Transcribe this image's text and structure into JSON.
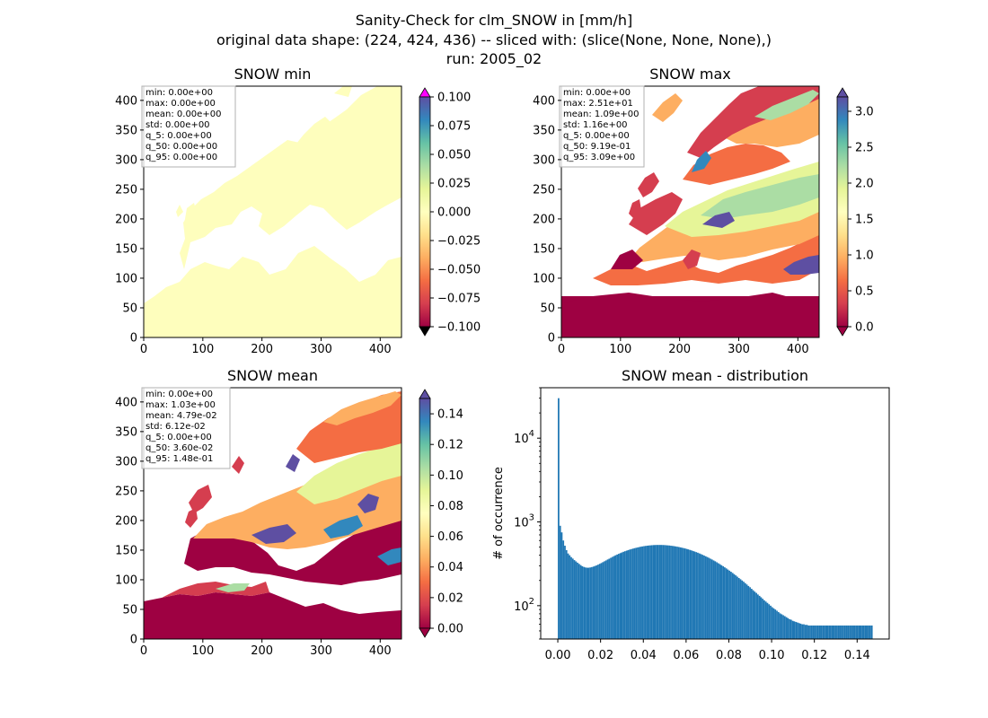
{
  "figure": {
    "suptitle_lines": [
      "Sanity-Check for clm_SNOW in [mm/h]",
      "original data shape: (224, 424, 436) -- sliced with: (slice(None, None, None),)",
      "run: 2005_02"
    ]
  },
  "colors": {
    "land_uniform": "#fefebd",
    "over_color": "#ff00ff",
    "under_color": "#000000",
    "hist_bar": "#1f77b4",
    "colormap": "Spectral",
    "spectral_stops": [
      "#9e0142",
      "#d53e4f",
      "#f46d43",
      "#fdae61",
      "#fee08b",
      "#ffffbf",
      "#e6f598",
      "#abdda4",
      "#66c2a5",
      "#3288bd",
      "#5e4fa2"
    ]
  },
  "panels": {
    "min": {
      "title": "SNOW min",
      "stats": [
        "min: 0.00e+00",
        "max: 0.00e+00",
        "mean: 0.00e+00",
        "std: 0.00e+00",
        "q_5: 0.00e+00",
        "q_50: 0.00e+00",
        "q_95: 0.00e+00"
      ]
    },
    "max": {
      "title": "SNOW max",
      "stats": [
        "min: 0.00e+00",
        "max: 2.51e+01",
        "mean: 1.09e+00",
        "std: 1.16e+00",
        "q_5: 0.00e+00",
        "q_50: 9.19e-01",
        "q_95: 3.09e+00"
      ]
    },
    "mean": {
      "title": "SNOW mean",
      "stats": [
        "min: 0.00e+00",
        "max: 1.03e+00",
        "mean: 4.79e-02",
        "std: 6.12e-02",
        "q_5: 0.00e+00",
        "q_50: 3.60e-02",
        "q_95: 1.48e-01"
      ]
    },
    "hist": {
      "title": "SNOW mean - distribution",
      "ylabel": "# of occurrence"
    }
  },
  "chart_data": [
    {
      "type": "heatmap",
      "title": "SNOW min",
      "xlim": [
        0,
        436
      ],
      "ylim": [
        0,
        424
      ],
      "xticks": [
        0,
        100,
        200,
        300,
        400
      ],
      "yticks": [
        0,
        50,
        100,
        150,
        200,
        250,
        300,
        350,
        400
      ],
      "colorbar": {
        "range": [
          -0.1,
          0.1
        ],
        "ticks": [
          -0.1,
          -0.075,
          -0.05,
          -0.025,
          0.0,
          0.025,
          0.05,
          0.075,
          0.1
        ],
        "tick_labels": [
          "−0.100",
          "−0.075",
          "−0.050",
          "−0.025",
          "0.000",
          "0.025",
          "0.050",
          "0.075",
          "0.100"
        ],
        "extend": "both"
      }
    },
    {
      "type": "heatmap",
      "title": "SNOW max",
      "xlim": [
        0,
        436
      ],
      "ylim": [
        0,
        424
      ],
      "xticks": [
        0,
        100,
        200,
        300,
        400
      ],
      "yticks": [
        0,
        50,
        100,
        150,
        200,
        250,
        300,
        350,
        400
      ],
      "colorbar": {
        "range": [
          0,
          3.2
        ],
        "ticks": [
          0.0,
          0.5,
          1.0,
          1.5,
          2.0,
          2.5,
          3.0
        ],
        "tick_labels": [
          "0.0",
          "0.5",
          "1.0",
          "1.5",
          "2.0",
          "2.5",
          "3.0"
        ],
        "extend": "both"
      }
    },
    {
      "type": "heatmap",
      "title": "SNOW mean",
      "xlim": [
        0,
        436
      ],
      "ylim": [
        0,
        424
      ],
      "xticks": [
        0,
        100,
        200,
        300,
        400
      ],
      "yticks": [
        0,
        50,
        100,
        150,
        200,
        250,
        300,
        350,
        400
      ],
      "colorbar": {
        "range": [
          0,
          0.15
        ],
        "ticks": [
          0.0,
          0.02,
          0.04,
          0.06,
          0.08,
          0.1,
          0.12,
          0.14
        ],
        "tick_labels": [
          "0.00",
          "0.02",
          "0.04",
          "0.06",
          "0.08",
          "0.10",
          "0.12",
          "0.14"
        ],
        "extend": "both"
      }
    },
    {
      "type": "bar",
      "title": "SNOW mean - distribution",
      "ylabel": "# of occurrence",
      "yscale": "log",
      "xlim": [
        -0.008,
        0.155
      ],
      "ylim": [
        40,
        40000
      ],
      "xticks": [
        0.0,
        0.02,
        0.04,
        0.06,
        0.08,
        0.1,
        0.12,
        0.14
      ],
      "xtick_labels": [
        "0.00",
        "0.02",
        "0.04",
        "0.06",
        "0.08",
        "0.10",
        "0.12",
        "0.14"
      ],
      "yticks": [
        100,
        1000,
        10000
      ],
      "ytick_labels": [
        "10",
        "10",
        "10"
      ],
      "ytick_exponents": [
        "2",
        "3",
        "4"
      ],
      "bin_width": 0.00074,
      "bin_starts": [
        0.0,
        0.00074,
        0.00148,
        0.00222,
        0.00296,
        0.0037,
        0.00444,
        0.00518,
        0.00592,
        0.00666,
        0.0074,
        0.00814,
        0.00888,
        0.00962,
        0.01036,
        0.0111,
        0.01184,
        0.01258,
        0.01332,
        0.01406,
        0.0148,
        0.01554,
        0.01628,
        0.01702,
        0.01776,
        0.0185,
        0.01924,
        0.01998,
        0.02072,
        0.02146,
        0.0222,
        0.02294,
        0.02368,
        0.02442,
        0.02516,
        0.0259,
        0.02664,
        0.02738,
        0.02812,
        0.02886,
        0.0296,
        0.03034,
        0.03108,
        0.03182,
        0.03256,
        0.0333,
        0.03404,
        0.03478,
        0.03552,
        0.03626,
        0.037,
        0.03774,
        0.03848,
        0.03922,
        0.03996,
        0.0407,
        0.04144,
        0.04218,
        0.04292,
        0.04366,
        0.0444,
        0.04514,
        0.04588,
        0.04662,
        0.04736,
        0.0481,
        0.04884,
        0.04958,
        0.05032,
        0.05106,
        0.0518,
        0.05254,
        0.05328,
        0.05402,
        0.05476,
        0.0555,
        0.05624,
        0.05698,
        0.05772,
        0.05846,
        0.0592,
        0.05994,
        0.06068,
        0.06142,
        0.06216,
        0.0629,
        0.06364,
        0.06438,
        0.06512,
        0.06586,
        0.0666,
        0.06734,
        0.06808,
        0.06882,
        0.06956,
        0.0703,
        0.07104,
        0.07178,
        0.07252,
        0.07326,
        0.074,
        0.07474,
        0.07548,
        0.07622,
        0.07696,
        0.0777,
        0.07844,
        0.07918,
        0.07992,
        0.08066,
        0.0814,
        0.08214,
        0.08288,
        0.08362,
        0.08436,
        0.0851,
        0.08584,
        0.08658,
        0.08732,
        0.08806,
        0.0888,
        0.08954,
        0.09028,
        0.09102,
        0.09176,
        0.0925,
        0.09324,
        0.09398,
        0.09472,
        0.09546,
        0.0962,
        0.09694,
        0.09768,
        0.09842,
        0.09916,
        0.0999,
        0.10064,
        0.10138,
        0.10212,
        0.10286,
        0.1036,
        0.10434,
        0.10508,
        0.10582,
        0.10656,
        0.1073,
        0.10804,
        0.10878,
        0.10952,
        0.11026,
        0.111,
        0.11174,
        0.11248,
        0.11322,
        0.11396,
        0.1147,
        0.11544,
        0.11618,
        0.11692,
        0.11766,
        0.1184,
        0.11914,
        0.11988,
        0.12062,
        0.12136,
        0.1221,
        0.12284,
        0.12358,
        0.12432,
        0.12506,
        0.1258,
        0.12654,
        0.12728,
        0.12802,
        0.12876,
        0.1295,
        0.13024,
        0.13098,
        0.13172,
        0.13246,
        0.1332,
        0.13394,
        0.13468,
        0.13542,
        0.13616,
        0.1369,
        0.13764,
        0.13838,
        0.13912,
        0.13986,
        0.1406,
        0.14134,
        0.14208,
        0.14282,
        0.14356,
        0.1443,
        0.14504,
        0.14578,
        0.14652,
        0.14726
      ],
      "counts": [
        30000,
        900,
        750,
        600,
        520,
        460,
        420,
        400,
        380,
        365,
        350,
        338,
        326,
        315,
        305,
        296,
        290,
        286,
        284,
        284,
        286,
        289,
        293,
        298,
        303,
        309,
        316,
        323,
        331,
        339,
        347,
        356,
        364,
        373,
        382,
        391,
        400,
        408,
        416,
        424,
        432,
        440,
        447,
        454,
        461,
        468,
        474,
        480,
        486,
        491,
        496,
        501,
        506,
        510,
        514,
        517,
        520,
        523,
        525,
        527,
        529,
        530,
        531,
        531,
        531,
        531,
        530,
        529,
        527,
        525,
        523,
        520,
        517,
        514,
        510,
        506,
        502,
        497,
        492,
        487,
        482,
        476,
        470,
        463,
        457,
        450,
        443,
        436,
        429,
        421,
        413,
        405,
        397,
        389,
        381,
        373,
        364,
        356,
        347,
        339,
        330,
        321,
        313,
        304,
        296,
        287,
        279,
        270,
        262,
        254,
        246,
        238,
        230,
        222,
        214,
        207,
        200,
        193,
        186,
        179,
        172,
        166,
        159,
        153,
        147,
        142,
        136,
        131,
        126,
        121,
        116,
        112,
        108,
        104,
        100,
        96,
        93,
        90,
        87,
        84,
        81,
        79,
        77,
        75,
        73,
        71,
        69,
        68,
        66,
        65,
        64,
        63,
        62,
        61,
        60,
        60,
        59,
        59,
        58,
        58,
        58,
        58,
        58,
        58,
        58,
        58,
        58,
        58,
        58,
        58,
        58,
        58,
        58,
        58,
        58,
        58,
        58,
        58,
        58,
        58,
        58,
        58,
        58,
        58,
        58,
        58,
        58,
        58,
        58,
        58,
        58,
        58,
        58,
        58,
        58,
        58,
        58,
        58,
        58
      ]
    }
  ]
}
